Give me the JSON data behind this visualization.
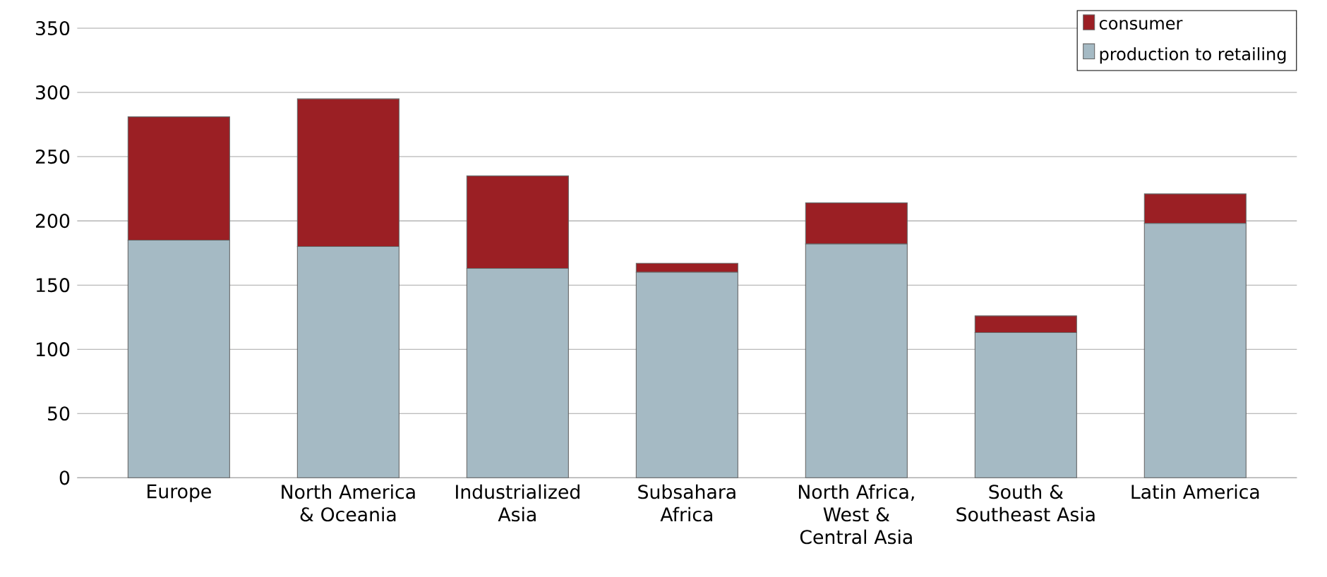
{
  "chart_data": {
    "type": "bar",
    "stacked": true,
    "categories": [
      "Europe",
      "North America & Oceania",
      "Industrialized Asia",
      "Subsahara Africa",
      "North Africa, West & Central Asia",
      "South & Southeast Asia",
      "Latin America"
    ],
    "series": [
      {
        "name": "production to retailing",
        "color": "#a5bac4",
        "values": [
          185,
          180,
          163,
          160,
          182,
          113,
          198
        ]
      },
      {
        "name": "consumer",
        "color": "#9b1f24",
        "values": [
          96,
          115,
          72,
          7,
          32,
          13,
          23
        ]
      }
    ],
    "ylim": [
      0,
      350
    ],
    "yticks": [
      0,
      50,
      100,
      150,
      200,
      250,
      300,
      350
    ],
    "grid": "y",
    "legend": "top right"
  }
}
